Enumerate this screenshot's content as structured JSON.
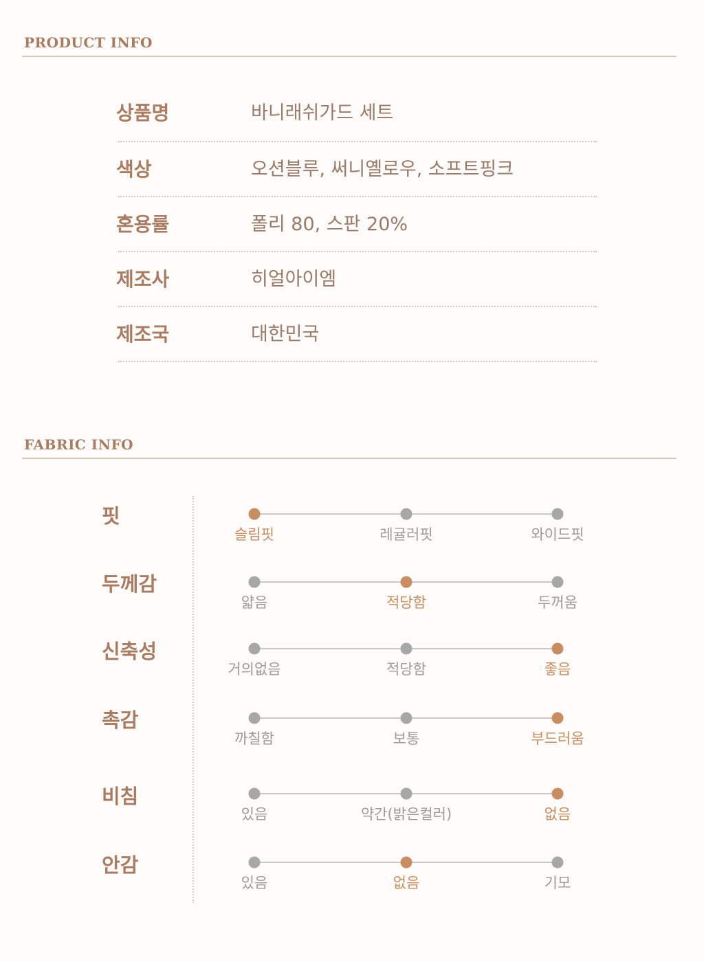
{
  "product_info": {
    "title": "PRODUCT INFO",
    "rows": [
      {
        "label": "상품명",
        "value": "바니래쉬가드 세트"
      },
      {
        "label": "색상",
        "value": "오션블루, 써니옐로우, 소프트핑크"
      },
      {
        "label": "혼용률",
        "value": "폴리 80, 스판 20%"
      },
      {
        "label": "제조사",
        "value": "히얼아이엠"
      },
      {
        "label": "제조국",
        "value": "대한민국"
      }
    ]
  },
  "fabric_info": {
    "title": "FABRIC INFO",
    "colors": {
      "active": "#c98d62",
      "inactive": "#a7a7a7",
      "label": "#a97c61"
    },
    "attributes": [
      {
        "label": "핏",
        "options": [
          "슬림핏",
          "레귤러핏",
          "와이드핏"
        ],
        "selected_index": 0
      },
      {
        "label": "두께감",
        "options": [
          "얇음",
          "적당함",
          "두꺼움"
        ],
        "selected_index": 1
      },
      {
        "label": "신축성",
        "options": [
          "거의없음",
          "적당함",
          "좋음"
        ],
        "selected_index": 2
      },
      {
        "label": "촉감",
        "options": [
          "까칠함",
          "보통",
          "부드러움"
        ],
        "selected_index": 2
      },
      {
        "label": "비침",
        "options": [
          "있음",
          "약간(밝은컬러)",
          "없음"
        ],
        "selected_index": 2
      },
      {
        "label": "안감",
        "options": [
          "있음",
          "없음",
          "기모"
        ],
        "selected_index": 1
      }
    ]
  }
}
